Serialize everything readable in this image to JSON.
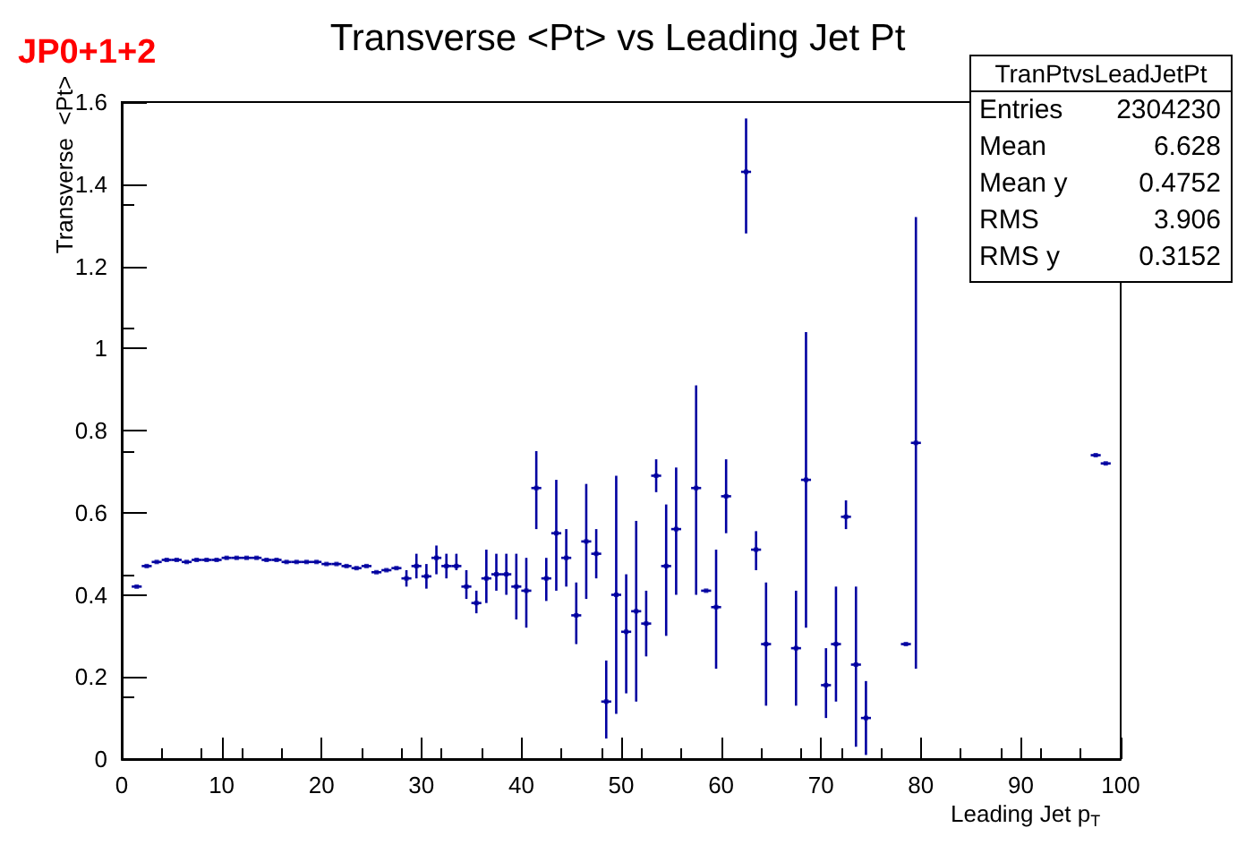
{
  "chart_data": {
    "type": "scatter",
    "title": "Transverse <Pt> vs Leading Jet Pt",
    "xlabel": "Leading Jet p$_{T}$",
    "ylabel": "Transverse  <Pt>",
    "annotations": [
      "JP0+1+2",
      "TranPtvsLeadJetPt",
      "Entries 2304230",
      "Mean 6.628",
      "Mean y 0.4752",
      "RMS 3.906",
      "RMS y 0.3152"
    ],
    "xlim": [
      0,
      100
    ],
    "xticks": [
      0,
      10,
      20,
      30,
      40,
      50,
      60,
      70,
      80,
      90,
      100
    ],
    "ylim": [
      0,
      1.6
    ],
    "yticks": [
      0,
      0.2,
      0.4,
      0.6,
      0.8,
      1,
      1.2,
      1.4,
      1.6
    ],
    "grid": false,
    "series": [
      {
        "color": "#0000a0",
        "x": [
          1.5,
          2.5,
          3.5,
          4.5,
          5.5,
          6.5,
          7.5,
          8.5,
          9.5,
          10.5,
          11.5,
          12.5,
          13.5,
          14.5,
          15.5,
          16.5,
          17.5,
          18.5,
          19.5,
          20.5,
          21.5,
          22.5,
          23.5,
          24.5,
          25.5,
          26.5,
          27.5,
          28.5,
          29.5,
          30.5,
          31.5,
          32.5,
          33.5,
          34.5,
          35.5,
          36.5,
          37.5,
          38.5,
          39.5,
          40.5,
          41.5,
          42.5,
          43.5,
          44.5,
          45.5,
          46.5,
          47.5,
          48.5,
          49.5,
          50.5,
          51.5,
          52.5,
          53.5,
          54.5,
          55.5,
          57.5,
          58.5,
          59.5,
          60.5,
          62.5,
          63.5,
          64.5,
          67.5,
          68.5,
          70.5,
          71.5,
          72.5,
          73.5,
          74.5,
          78.5,
          79.5,
          97.5,
          98.5
        ],
        "values": [
          0.42,
          0.47,
          0.48,
          0.485,
          0.485,
          0.48,
          0.485,
          0.485,
          0.485,
          0.49,
          0.49,
          0.49,
          0.49,
          0.485,
          0.485,
          0.48,
          0.48,
          0.48,
          0.48,
          0.475,
          0.475,
          0.47,
          0.465,
          0.47,
          0.455,
          0.46,
          0.465,
          0.44,
          0.47,
          0.445,
          0.49,
          0.47,
          0.47,
          0.42,
          0.38,
          0.44,
          0.45,
          0.45,
          0.42,
          0.41,
          0.66,
          0.44,
          0.55,
          0.49,
          0.35,
          0.53,
          0.5,
          0.14,
          0.4,
          0.31,
          0.36,
          0.33,
          0.69,
          0.47,
          0.56,
          0.66,
          0.41,
          0.37,
          0.64,
          1.43,
          0.51,
          0.28,
          0.27,
          0.68,
          0.18,
          0.28,
          0.59,
          0.23,
          0.1,
          0.28,
          0.77,
          0.74,
          0.72
        ],
        "errors": [
          null,
          null,
          null,
          null,
          null,
          null,
          null,
          null,
          null,
          null,
          null,
          null,
          null,
          null,
          null,
          null,
          null,
          null,
          null,
          null,
          null,
          null,
          null,
          null,
          null,
          null,
          null,
          0.02,
          0.03,
          0.03,
          [
            0.45,
            0.52
          ],
          0.03,
          [
            0.46,
            0.5
          ],
          [
            0.39,
            0.46
          ],
          [
            0.355,
            0.41
          ],
          [
            0.38,
            0.51
          ],
          [
            0.41,
            0.5
          ],
          [
            0.4,
            0.5
          ],
          [
            0.34,
            0.5
          ],
          [
            0.32,
            0.49
          ],
          [
            0.56,
            0.75
          ],
          [
            0.385,
            0.49
          ],
          [
            0.41,
            0.68
          ],
          [
            0.42,
            0.56
          ],
          [
            0.28,
            0.43
          ],
          [
            0.39,
            0.67
          ],
          [
            0.44,
            0.56
          ],
          [
            0.05,
            0.24
          ],
          [
            0.11,
            0.69
          ],
          [
            0.16,
            0.45
          ],
          [
            0.14,
            0.58
          ],
          [
            0.25,
            0.41
          ],
          [
            0.65,
            0.73
          ],
          [
            0.3,
            0.62
          ],
          [
            0.4,
            0.71
          ],
          [
            0.4,
            0.91
          ],
          null,
          [
            0.22,
            0.51
          ],
          [
            0.55,
            0.73
          ],
          [
            1.28,
            1.56
          ],
          [
            0.46,
            0.555
          ],
          [
            0.13,
            0.43
          ],
          [
            0.13,
            0.41
          ],
          [
            0.32,
            1.04
          ],
          [
            0.1,
            0.27
          ],
          [
            0.14,
            0.42
          ],
          [
            0.56,
            0.63
          ],
          [
            0.03,
            0.42
          ],
          [
            0.01,
            0.19
          ],
          null,
          [
            0.22,
            1.32
          ],
          null,
          null
        ],
        "xerrors": [
          0.5,
          0.5,
          0.5,
          0.5,
          0.5,
          0.5,
          0.5,
          0.5,
          0.5,
          0.5,
          0.5,
          0.5,
          0.5,
          0.5,
          0.5,
          0.5,
          0.5,
          0.5,
          0.5,
          0.5,
          0.5,
          0.5,
          0.5,
          0.5,
          0.5,
          0.5,
          0.5,
          0.5,
          0.5,
          0.5,
          0.5,
          0.5,
          0.5,
          0.5,
          0.5,
          0.5,
          0.5,
          0.5,
          0.5,
          0.5,
          0.5,
          0.5,
          0.5,
          0.5,
          0.5,
          0.5,
          0.5,
          0.5,
          0.5,
          0.5,
          0.5,
          0.5,
          0.5,
          0.5,
          0.5,
          0.5,
          0.5,
          0.5,
          0.5,
          0.5,
          0.5,
          0.5,
          0.5,
          0.5,
          0.5,
          0.5,
          0.5,
          0.5,
          0.5,
          0.5,
          0.5,
          0.5,
          0.5
        ]
      }
    ]
  }
}
